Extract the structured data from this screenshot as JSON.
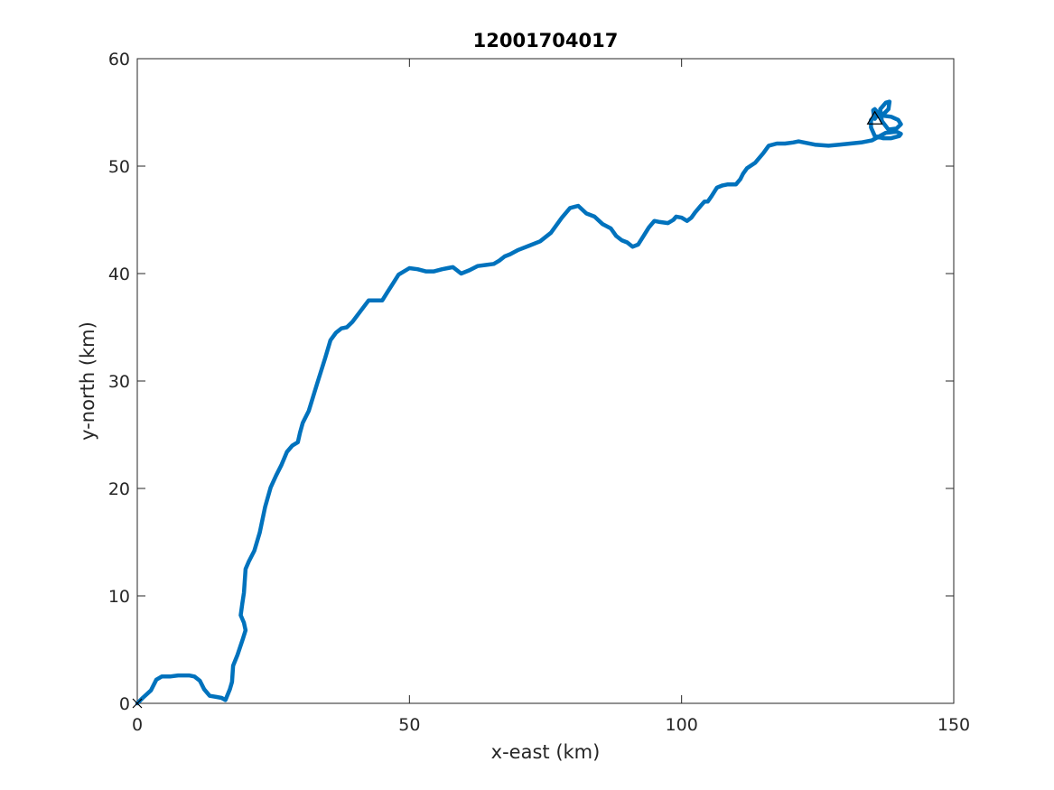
{
  "chart_data": {
    "type": "line",
    "title": "12001704017",
    "xlabel": "x-east (km)",
    "ylabel": "y-north (km)",
    "xlim": [
      0,
      150
    ],
    "ylim": [
      0,
      60
    ],
    "xticks": [
      0,
      50,
      100,
      150
    ],
    "yticks": [
      0,
      10,
      20,
      30,
      40,
      50,
      60
    ],
    "grid": false,
    "line_color": "#0072BD",
    "series": [
      {
        "x": [
          0,
          1,
          2.5,
          3.5,
          4.5,
          6,
          7.5,
          9.5,
          10.5,
          11.5,
          12.3,
          13.3,
          14.5,
          15.5,
          16.2,
          17,
          17.4,
          17.6,
          18.4,
          19.4,
          19.9,
          19.6,
          19,
          19.3,
          19.6,
          19.9,
          20.5,
          21.5,
          22.5,
          23.5,
          24.5,
          25.5,
          26.5,
          27.5,
          28.5,
          29.5,
          29.9,
          30.4,
          31.5,
          33,
          34.5,
          35.5,
          36.5,
          37.5,
          38.5,
          39.5,
          41,
          42.5,
          44,
          45,
          46,
          47,
          48,
          50,
          51.5,
          53,
          54.5,
          56,
          57,
          58,
          59.5,
          61,
          62.5,
          64,
          65.5,
          66.5,
          67.5,
          68.5,
          70,
          72,
          74,
          76,
          78,
          79.5,
          81,
          82.5,
          84,
          85.5,
          87,
          88,
          89,
          90,
          91,
          92,
          93,
          94,
          95,
          96,
          97.5,
          98.5,
          99,
          100,
          101,
          101.8,
          102.5,
          103.5,
          104.2,
          104.8,
          105.5,
          106.5,
          107.5,
          108.5,
          109.3,
          110,
          110.8,
          111.3,
          112,
          113.5,
          115,
          116,
          117.5,
          119,
          120.5,
          121.5,
          122.5,
          124.5,
          127,
          129,
          131,
          133,
          135,
          137.5,
          139.5,
          140.3,
          140,
          138.5,
          137,
          135.5,
          134.8,
          134.8,
          135.5,
          137,
          138.5,
          139.8,
          140.3,
          139.5,
          138,
          136.8,
          136.5,
          137.5,
          138.2,
          138,
          137,
          136,
          135.5,
          135.2,
          135.3,
          135.8,
          135.5
        ],
        "y": [
          0,
          0.5,
          1.2,
          2.2,
          2.5,
          2.5,
          2.6,
          2.6,
          2.5,
          2.1,
          1.3,
          0.7,
          0.6,
          0.5,
          0.3,
          1.3,
          2,
          3.5,
          4.5,
          6,
          6.8,
          7.5,
          8.2,
          9.3,
          10.3,
          12.5,
          13.2,
          14.2,
          15.9,
          18.3,
          20.1,
          21.2,
          22.2,
          23.4,
          24,
          24.3,
          25.2,
          26.1,
          27.2,
          29.7,
          32.1,
          33.8,
          34.5,
          34.9,
          35,
          35.5,
          36.5,
          37.5,
          37.5,
          37.5,
          38.3,
          39.1,
          39.9,
          40.5,
          40.4,
          40.2,
          40.2,
          40.4,
          40.5,
          40.6,
          40,
          40.3,
          40.7,
          40.8,
          40.9,
          41.2,
          41.6,
          41.8,
          42.2,
          42.6,
          43,
          43.8,
          45.2,
          46.1,
          46.3,
          45.6,
          45.3,
          44.6,
          44.2,
          43.5,
          43.1,
          42.9,
          42.5,
          42.7,
          43.5,
          44.3,
          44.9,
          44.8,
          44.7,
          45,
          45.3,
          45.2,
          44.9,
          45.2,
          45.7,
          46.3,
          46.7,
          46.7,
          47.2,
          48,
          48.2,
          48.3,
          48.3,
          48.3,
          48.8,
          49.3,
          49.8,
          50.3,
          51.2,
          51.9,
          52.1,
          52.1,
          52.2,
          52.3,
          52.2,
          52,
          51.9,
          52,
          52.1,
          52.2,
          52.4,
          53.1,
          53.2,
          53,
          52.8,
          52.6,
          52.6,
          52.8,
          53.6,
          54.3,
          54.6,
          54.7,
          54.6,
          54.3,
          53.9,
          53.5,
          53.4,
          54.2,
          55.3,
          55.9,
          56,
          55.3,
          54.8,
          55,
          55.3,
          55.2,
          54.8,
          54.6,
          54.4
        ]
      }
    ],
    "markers": [
      {
        "symbol": "x",
        "x": 0,
        "y": 0
      },
      {
        "symbol": "triangle",
        "x": 135.5,
        "y": 54.4
      }
    ]
  }
}
